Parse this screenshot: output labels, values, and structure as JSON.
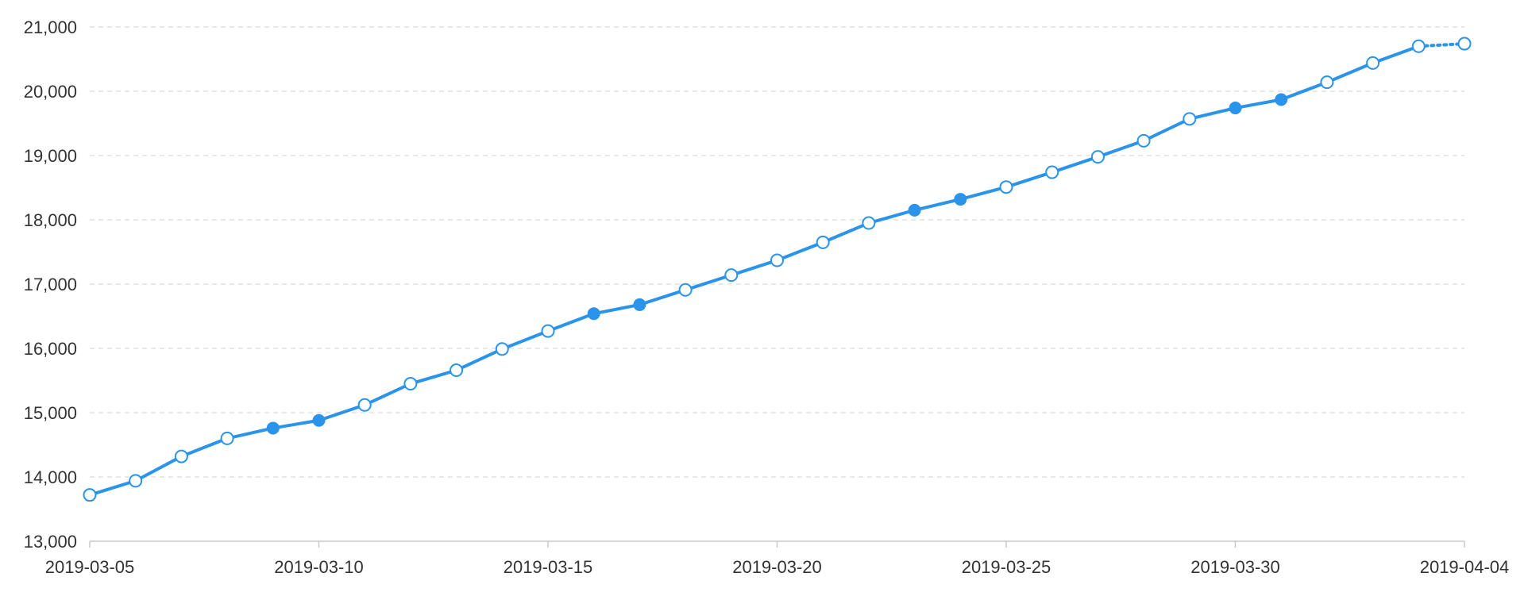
{
  "chart_data": {
    "type": "line",
    "title": "",
    "xlabel": "",
    "ylabel": "",
    "x_tick_labels": [
      "2019-03-05",
      "2019-03-10",
      "2019-03-15",
      "2019-03-20",
      "2019-03-25",
      "2019-03-30",
      "2019-04-04"
    ],
    "y_tick_labels": [
      "13,000",
      "14,000",
      "15,000",
      "16,000",
      "17,000",
      "18,000",
      "19,000",
      "20,000",
      "21,000"
    ],
    "ylim": [
      13000,
      21000
    ],
    "xlim": [
      "2019-03-05",
      "2019-04-04"
    ],
    "grid": "horizontal dashed",
    "legend": "none",
    "series_color": "#2a93ea",
    "x": [
      "2019-03-05",
      "2019-03-06",
      "2019-03-07",
      "2019-03-08",
      "2019-03-09",
      "2019-03-10",
      "2019-03-11",
      "2019-03-12",
      "2019-03-13",
      "2019-03-14",
      "2019-03-15",
      "2019-03-16",
      "2019-03-17",
      "2019-03-18",
      "2019-03-19",
      "2019-03-20",
      "2019-03-21",
      "2019-03-22",
      "2019-03-23",
      "2019-03-24",
      "2019-03-25",
      "2019-03-26",
      "2019-03-27",
      "2019-03-28",
      "2019-03-29",
      "2019-03-30",
      "2019-03-31",
      "2019-04-01",
      "2019-04-02",
      "2019-04-03",
      "2019-04-04"
    ],
    "series": [
      {
        "values": [
          13720,
          13940,
          14320,
          14600,
          14760,
          14880,
          15120,
          15450,
          15660,
          15990,
          16270,
          16540,
          16680,
          16910,
          17140,
          17370,
          17650,
          17950,
          18150,
          18320,
          18510,
          18740,
          18980,
          19230,
          19570,
          19740,
          19870,
          20140,
          20440,
          20700,
          20740
        ],
        "filled_markers": [
          false,
          false,
          false,
          false,
          true,
          true,
          false,
          false,
          false,
          false,
          false,
          true,
          true,
          false,
          false,
          false,
          false,
          false,
          true,
          true,
          false,
          false,
          false,
          false,
          false,
          true,
          true,
          false,
          false,
          false,
          false
        ],
        "last_segment_dotted": true
      }
    ]
  }
}
